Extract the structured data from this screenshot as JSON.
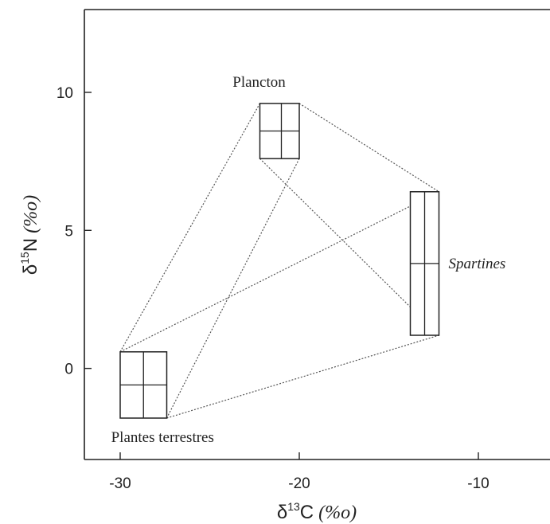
{
  "chart_data": {
    "type": "scatter",
    "title": "",
    "xlabel": {
      "main": "δ",
      "sup": "13",
      "unit": "C",
      "paren": "(%o)"
    },
    "ylabel": {
      "main": "δ",
      "sup": "15",
      "unit": "N",
      "paren": "(%o)"
    },
    "xlim": [
      -32,
      -6
    ],
    "ylim": [
      -3.3,
      13
    ],
    "xticks": [
      -30,
      -20,
      -10
    ],
    "xtick_labels": [
      "-30",
      "-20",
      "-10"
    ],
    "yticks": [
      0,
      5,
      10
    ],
    "ytick_labels": [
      "0",
      "5",
      "10"
    ],
    "grid": false,
    "groups": [
      {
        "name": "Plancton",
        "label_italic": false,
        "x_mean": -21.0,
        "x_min": -22.2,
        "x_max": -20.0,
        "y_mean": 8.6,
        "y_min": 7.6,
        "y_max": 9.6
      },
      {
        "name": "Spartines",
        "label_italic": true,
        "x_mean": -13.0,
        "x_min": -13.8,
        "x_max": -12.2,
        "y_mean": 3.8,
        "y_min": 1.2,
        "y_max": 6.4
      },
      {
        "name": "Plantes terrestres",
        "label_italic": false,
        "x_mean": -28.7,
        "x_min": -30.0,
        "x_max": -27.4,
        "y_mean": -0.6,
        "y_min": -1.8,
        "y_max": 0.6
      }
    ]
  }
}
